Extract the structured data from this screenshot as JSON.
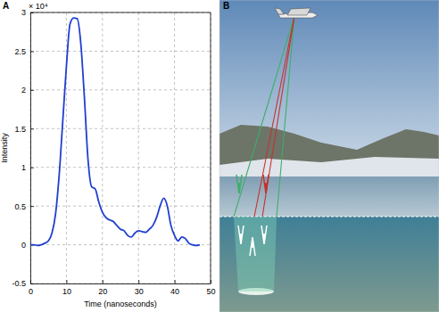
{
  "chart_data": {
    "type": "line",
    "annotations": [
      "A",
      "B"
    ],
    "x_label": "Time (nanoseconds)",
    "y_label": "Intensity",
    "y_scale_label": "× 10⁴",
    "x": [
      0,
      1,
      2,
      3,
      4,
      5,
      6,
      7,
      8,
      9,
      10,
      11,
      12,
      13,
      14,
      15,
      16,
      17,
      18,
      19,
      20,
      21,
      22,
      23,
      24,
      25,
      26,
      27,
      28,
      29,
      30,
      31,
      32,
      33,
      34,
      35,
      36,
      37,
      38,
      39,
      40,
      41,
      42,
      43,
      44,
      45,
      46,
      47
    ],
    "values": [
      0,
      0,
      -0.01,
      0,
      0.02,
      0.05,
      0.15,
      0.4,
      0.9,
      1.6,
      2.3,
      2.85,
      2.93,
      2.92,
      2.6,
      1.9,
      1.1,
      0.75,
      0.72,
      0.55,
      0.42,
      0.35,
      0.32,
      0.3,
      0.25,
      0.2,
      0.18,
      0.12,
      0.1,
      0.15,
      0.18,
      0.17,
      0.16,
      0.2,
      0.25,
      0.35,
      0.5,
      0.6,
      0.5,
      0.25,
      0.12,
      0.05,
      0.1,
      0.08,
      0.02,
      0,
      -0.01,
      0
    ],
    "color": "#1f3fd0",
    "xlim": [
      0,
      50
    ],
    "xticks": [
      0,
      10,
      20,
      30,
      40,
      50
    ],
    "ylim": [
      -0.5,
      3
    ],
    "yticks": [
      -0.5,
      0,
      0.5,
      1,
      1.5,
      2,
      2.5,
      3
    ],
    "grid": true
  }
}
